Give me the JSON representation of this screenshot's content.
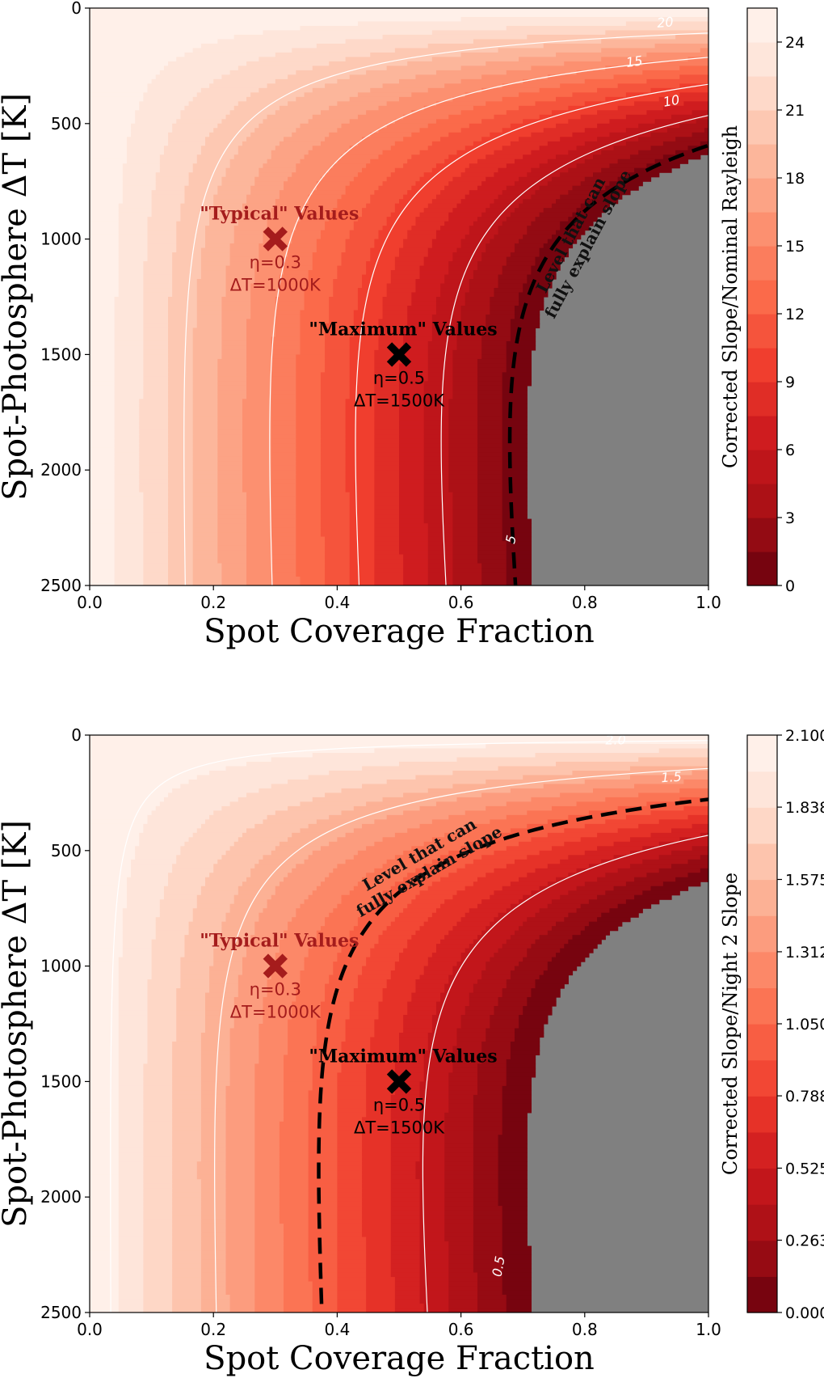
{
  "chart_data": [
    {
      "type": "heatmap",
      "xlabel": "Spot Coverage Fraction",
      "ylabel": "Spot-Photosphere ΔT [K]",
      "colorbar_label": "Corrected Slope/Nominal Rayleigh",
      "xlim": [
        0.0,
        1.0
      ],
      "ylim": [
        2500,
        0
      ],
      "x_ticks": [
        "0.0",
        "0.2",
        "0.4",
        "0.6",
        "0.8",
        "1.0"
      ],
      "y_ticks": [
        "0",
        "500",
        "1000",
        "1500",
        "2000",
        "2500"
      ],
      "colorbar_ticks": [
        "0",
        "3",
        "6",
        "9",
        "12",
        "15",
        "18",
        "21",
        "24"
      ],
      "colorbar_range": [
        0,
        25.5
      ],
      "num_levels": 17,
      "max_value": 25.5,
      "contour_levels": [
        {
          "value": 20,
          "label": "20"
        },
        {
          "value": 15,
          "label": "15"
        },
        {
          "value": 10,
          "label": "10"
        },
        {
          "value": 5,
          "label": "5"
        }
      ],
      "dashed_level": 1.0,
      "dashed_label_line1": "Level that can",
      "dashed_label_line2": "fully explain slope",
      "markers": [
        {
          "x": 0.3,
          "y": 1000,
          "title": "\"Typical\" Values",
          "eta": "η=0.3",
          "dt": "ΔT=1000K",
          "color": "#a51c1c"
        },
        {
          "x": 0.5,
          "y": 1500,
          "title": "\"Maximum\" Values",
          "eta": "η=0.5",
          "dt": "ΔT=1500K",
          "color": "#000000"
        }
      ]
    },
    {
      "type": "heatmap",
      "xlabel": "Spot Coverage Fraction",
      "ylabel": "Spot-Photosphere ΔT [K]",
      "colorbar_label": "Corrected Slope/Night 2 Slope",
      "xlim": [
        0.0,
        1.0
      ],
      "ylim": [
        2500,
        0
      ],
      "x_ticks": [
        "0.0",
        "0.2",
        "0.4",
        "0.6",
        "0.8",
        "1.0"
      ],
      "y_ticks": [
        "0",
        "500",
        "1000",
        "1500",
        "2000",
        "2500"
      ],
      "colorbar_ticks": [
        "0.000",
        "0.263",
        "0.525",
        "0.788",
        "1.050",
        "1.312",
        "1.575",
        "1.838",
        "2.100"
      ],
      "colorbar_range": [
        0,
        2.1
      ],
      "num_levels": 16,
      "max_value": 2.1,
      "contour_levels": [
        {
          "value": 2.0,
          "label": "2.0"
        },
        {
          "value": 1.5,
          "label": "1.5"
        },
        {
          "value": 0.5,
          "label": "0.5"
        }
      ],
      "dashed_level": 1.0,
      "dashed_label_line1": "Level that can",
      "dashed_label_line2": "fully explain slope",
      "markers": [
        {
          "x": 0.3,
          "y": 1000,
          "title": "\"Typical\" Values",
          "eta": "η=0.3",
          "dt": "ΔT=1000K",
          "color": "#a51c1c"
        },
        {
          "x": 0.5,
          "y": 1500,
          "title": "\"Maximum\" Values",
          "eta": "η=0.5",
          "dt": "ΔT=1500K",
          "color": "#000000"
        }
      ]
    }
  ]
}
